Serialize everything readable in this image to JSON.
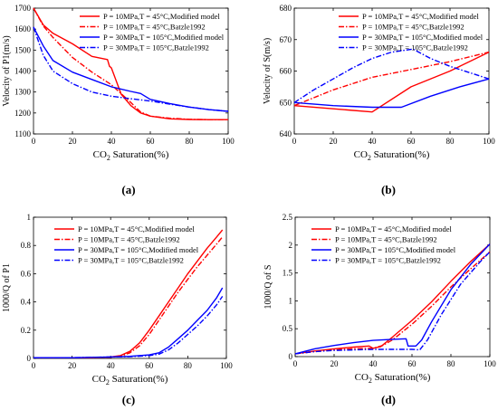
{
  "panels": [
    {
      "label": "(a)"
    },
    {
      "label": "(b)"
    },
    {
      "label": "(c)"
    },
    {
      "label": "(d)"
    }
  ],
  "chart_data": [
    {
      "type": "line",
      "title": "",
      "xlabel_main": "CO",
      "xlabel_sub": "2",
      "xlabel_rest": " Saturation(%)",
      "ylabel": "Velocity of P1(m/s)",
      "xlim": [
        0,
        100
      ],
      "ylim": [
        1100,
        1700
      ],
      "xticks": [
        0,
        20,
        40,
        60,
        80,
        100
      ],
      "yticks": [
        1100,
        1200,
        1300,
        1400,
        1500,
        1600,
        1700
      ],
      "legend_position": "top-right",
      "series": [
        {
          "name": "P = 10MPa,T = 45°C,Modified model",
          "color": "#ff0000",
          "dash": "solid",
          "points": [
            [
              0,
              1700
            ],
            [
              5,
              1620
            ],
            [
              10,
              1580
            ],
            [
              20,
              1530
            ],
            [
              30,
              1470
            ],
            [
              38,
              1455
            ],
            [
              39,
              1423
            ],
            [
              40,
              1415
            ],
            [
              45,
              1290
            ],
            [
              50,
              1235
            ],
            [
              55,
              1200
            ],
            [
              60,
              1185
            ],
            [
              70,
              1172
            ],
            [
              80,
              1169
            ],
            [
              90,
              1168
            ],
            [
              100,
              1168
            ]
          ]
        },
        {
          "name": "P = 10MPa,T = 45°C,Batzle1992",
          "color": "#ff0000",
          "dash": "dashdot",
          "points": [
            [
              0,
              1700
            ],
            [
              5,
              1615
            ],
            [
              10,
              1560
            ],
            [
              20,
              1465
            ],
            [
              30,
              1395
            ],
            [
              40,
              1335
            ],
            [
              50,
              1250
            ],
            [
              55,
              1205
            ],
            [
              60,
              1185
            ],
            [
              70,
              1175
            ],
            [
              80,
              1170
            ],
            [
              90,
              1168
            ],
            [
              100,
              1168
            ]
          ]
        },
        {
          "name": "P = 30MPa,T = 105°C,Modified model",
          "color": "#0000ff",
          "dash": "solid",
          "points": [
            [
              0,
              1610
            ],
            [
              5,
              1520
            ],
            [
              10,
              1450
            ],
            [
              20,
              1395
            ],
            [
              30,
              1360
            ],
            [
              40,
              1325
            ],
            [
              50,
              1303
            ],
            [
              55,
              1293
            ],
            [
              60,
              1265
            ],
            [
              70,
              1245
            ],
            [
              80,
              1228
            ],
            [
              90,
              1216
            ],
            [
              100,
              1208
            ]
          ]
        },
        {
          "name": "P = 30MPa,T = 105°C,Batzle1992",
          "color": "#0000ff",
          "dash": "dashdot",
          "points": [
            [
              0,
              1610
            ],
            [
              5,
              1475
            ],
            [
              10,
              1400
            ],
            [
              20,
              1340
            ],
            [
              30,
              1300
            ],
            [
              40,
              1280
            ],
            [
              50,
              1268
            ],
            [
              60,
              1257
            ],
            [
              70,
              1242
            ],
            [
              80,
              1228
            ],
            [
              90,
              1216
            ],
            [
              100,
              1208
            ]
          ]
        }
      ]
    },
    {
      "type": "line",
      "title": "",
      "xlabel_main": "CO",
      "xlabel_sub": "2",
      "xlabel_rest": " Saturation(%)",
      "ylabel": "Velocity of S(m/s)",
      "xlim": [
        0,
        100
      ],
      "ylim": [
        640,
        680
      ],
      "xticks": [
        0,
        20,
        40,
        60,
        80,
        100
      ],
      "yticks": [
        640,
        650,
        660,
        670,
        680
      ],
      "legend_position": "top-right",
      "series": [
        {
          "name": "P = 10MPa,T = 45°C,Modified model",
          "color": "#ff0000",
          "dash": "solid",
          "points": [
            [
              0,
              649
            ],
            [
              20,
              648
            ],
            [
              40,
              647
            ],
            [
              60,
              655
            ],
            [
              80,
              660
            ],
            [
              100,
              666
            ]
          ]
        },
        {
          "name": "P = 10MPa,T = 45°C,Batzle1992",
          "color": "#ff0000",
          "dash": "dashdot",
          "points": [
            [
              0,
              649
            ],
            [
              10,
              651.5
            ],
            [
              20,
              654
            ],
            [
              30,
              656
            ],
            [
              40,
              658
            ],
            [
              60,
              660.5
            ],
            [
              80,
              663
            ],
            [
              100,
              666
            ]
          ]
        },
        {
          "name": "P = 30MPa,T = 105°C,Modified model",
          "color": "#0000ff",
          "dash": "solid",
          "points": [
            [
              0,
              650
            ],
            [
              20,
              649
            ],
            [
              40,
              648.5
            ],
            [
              55,
              648.5
            ],
            [
              70,
              652
            ],
            [
              85,
              655
            ],
            [
              100,
              657.5
            ]
          ]
        },
        {
          "name": "P = 30MPa,T = 105°C,Batzle1992",
          "color": "#0000ff",
          "dash": "dashdot",
          "points": [
            [
              0,
              650
            ],
            [
              10,
              654
            ],
            [
              20,
              657.5
            ],
            [
              30,
              661
            ],
            [
              40,
              664
            ],
            [
              50,
              666
            ],
            [
              61,
              667
            ],
            [
              70,
              664
            ],
            [
              80,
              661.5
            ],
            [
              90,
              659.5
            ],
            [
              100,
              657.5
            ]
          ]
        }
      ]
    },
    {
      "type": "line",
      "title": "",
      "xlabel_main": "CO",
      "xlabel_sub": "2",
      "xlabel_rest": " Saturation(%)",
      "ylabel": "1000/Q of P1",
      "xlim": [
        0,
        100
      ],
      "ylim": [
        0,
        1
      ],
      "xticks": [
        0,
        20,
        40,
        60,
        80,
        100
      ],
      "yticks": [
        0,
        0.2,
        0.4,
        0.6,
        0.8,
        1
      ],
      "legend_position": "top-left",
      "series": [
        {
          "name": "P = 10MPa,T = 45°C,Modified model",
          "color": "#ff0000",
          "dash": "solid",
          "points": [
            [
              0,
              0.005
            ],
            [
              20,
              0.005
            ],
            [
              30,
              0.005
            ],
            [
              40,
              0.01
            ],
            [
              45,
              0.02
            ],
            [
              50,
              0.05
            ],
            [
              55,
              0.11
            ],
            [
              60,
              0.2
            ],
            [
              65,
              0.3
            ],
            [
              70,
              0.4
            ],
            [
              75,
              0.5
            ],
            [
              80,
              0.6
            ],
            [
              85,
              0.69
            ],
            [
              90,
              0.78
            ],
            [
              95,
              0.86
            ],
            [
              98,
              0.91
            ]
          ]
        },
        {
          "name": "P = 10MPa,T = 45°C,Batzle1992",
          "color": "#ff0000",
          "dash": "dashdot",
          "points": [
            [
              0,
              0.005
            ],
            [
              20,
              0.005
            ],
            [
              30,
              0.005
            ],
            [
              40,
              0.008
            ],
            [
              45,
              0.015
            ],
            [
              50,
              0.04
            ],
            [
              55,
              0.09
            ],
            [
              60,
              0.17
            ],
            [
              65,
              0.27
            ],
            [
              70,
              0.37
            ],
            [
              75,
              0.47
            ],
            [
              80,
              0.56
            ],
            [
              85,
              0.65
            ],
            [
              90,
              0.73
            ],
            [
              95,
              0.81
            ],
            [
              98,
              0.86
            ]
          ]
        },
        {
          "name": "P = 30MPa,T = 105°C,Modified model",
          "color": "#0000ff",
          "dash": "solid",
          "points": [
            [
              0,
              0.005
            ],
            [
              20,
              0.005
            ],
            [
              40,
              0.01
            ],
            [
              50,
              0.015
            ],
            [
              60,
              0.025
            ],
            [
              65,
              0.04
            ],
            [
              70,
              0.08
            ],
            [
              75,
              0.14
            ],
            [
              80,
              0.2
            ],
            [
              85,
              0.27
            ],
            [
              90,
              0.34
            ],
            [
              95,
              0.43
            ],
            [
              98,
              0.5
            ]
          ]
        },
        {
          "name": "P = 30MPa,T = 105°C,Batzle1992",
          "color": "#0000ff",
          "dash": "dashdot",
          "points": [
            [
              0,
              0.005
            ],
            [
              20,
              0.005
            ],
            [
              40,
              0.01
            ],
            [
              50,
              0.012
            ],
            [
              60,
              0.02
            ],
            [
              65,
              0.03
            ],
            [
              70,
              0.06
            ],
            [
              75,
              0.11
            ],
            [
              80,
              0.17
            ],
            [
              85,
              0.23
            ],
            [
              90,
              0.3
            ],
            [
              95,
              0.38
            ],
            [
              98,
              0.44
            ]
          ]
        }
      ]
    },
    {
      "type": "line",
      "title": "",
      "xlabel_main": "CO",
      "xlabel_sub": "2",
      "xlabel_rest": " Saturation(%)",
      "ylabel": "1000/Q of S",
      "xlim": [
        0,
        100
      ],
      "ylim": [
        0,
        2.5
      ],
      "xticks": [
        0,
        20,
        40,
        60,
        80,
        100
      ],
      "yticks": [
        0,
        0.5,
        1,
        1.5,
        2,
        2.5
      ],
      "legend_position": "top-left",
      "series": [
        {
          "name": "P = 10MPa,T = 45°C,Modified model",
          "color": "#ff0000",
          "dash": "solid",
          "points": [
            [
              0,
              0.05
            ],
            [
              10,
              0.1
            ],
            [
              20,
              0.14
            ],
            [
              30,
              0.17
            ],
            [
              38,
              0.19
            ],
            [
              40,
              0.15
            ],
            [
              44,
              0.18
            ],
            [
              50,
              0.35
            ],
            [
              60,
              0.65
            ],
            [
              70,
              0.98
            ],
            [
              80,
              1.35
            ],
            [
              90,
              1.7
            ],
            [
              100,
              2.02
            ]
          ]
        },
        {
          "name": "P = 10MPa,T = 45°C,Batzle1992",
          "color": "#ff0000",
          "dash": "dashdot",
          "points": [
            [
              0,
              0.05
            ],
            [
              10,
              0.09
            ],
            [
              20,
              0.12
            ],
            [
              30,
              0.14
            ],
            [
              40,
              0.15
            ],
            [
              45,
              0.2
            ],
            [
              50,
              0.3
            ],
            [
              60,
              0.58
            ],
            [
              70,
              0.9
            ],
            [
              80,
              1.25
            ],
            [
              90,
              1.57
            ],
            [
              100,
              1.88
            ]
          ]
        },
        {
          "name": "P = 30MPa,T = 105°C,Modified model",
          "color": "#0000ff",
          "dash": "solid",
          "points": [
            [
              0,
              0.05
            ],
            [
              10,
              0.14
            ],
            [
              20,
              0.2
            ],
            [
              30,
              0.25
            ],
            [
              40,
              0.29
            ],
            [
              50,
              0.31
            ],
            [
              57,
              0.32
            ],
            [
              58,
              0.19
            ],
            [
              62,
              0.19
            ],
            [
              65,
              0.3
            ],
            [
              70,
              0.62
            ],
            [
              80,
              1.2
            ],
            [
              90,
              1.65
            ],
            [
              100,
              2.02
            ]
          ]
        },
        {
          "name": "P = 30MPa,T = 105°C,Batzle1992",
          "color": "#0000ff",
          "dash": "dashdot",
          "points": [
            [
              0,
              0.05
            ],
            [
              10,
              0.09
            ],
            [
              20,
              0.11
            ],
            [
              30,
              0.12
            ],
            [
              40,
              0.13
            ],
            [
              50,
              0.13
            ],
            [
              60,
              0.13
            ],
            [
              64,
              0.12
            ],
            [
              68,
              0.3
            ],
            [
              75,
              0.75
            ],
            [
              85,
              1.3
            ],
            [
              95,
              1.7
            ],
            [
              100,
              1.88
            ]
          ]
        }
      ]
    }
  ]
}
